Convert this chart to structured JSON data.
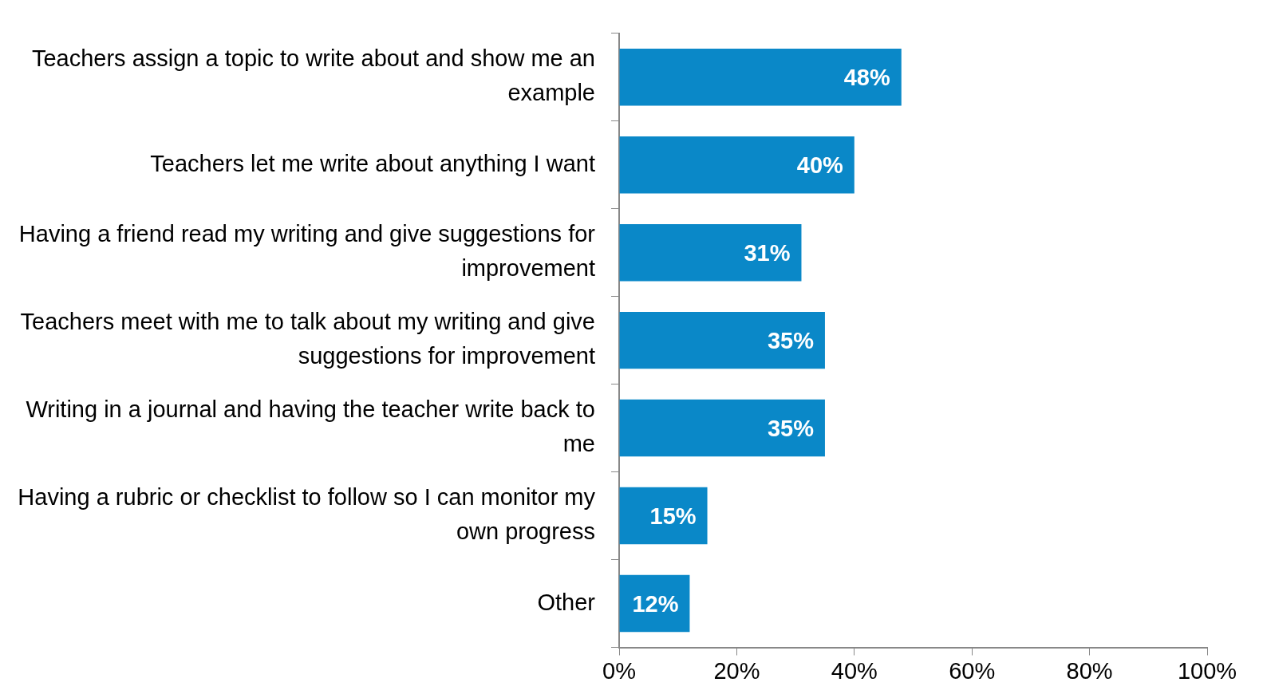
{
  "chart_data": {
    "type": "bar",
    "orientation": "horizontal",
    "categories": [
      "Teachers assign a topic to write about and show me an example",
      "Teachers let me write about anything I want",
      "Having a friend read my writing and give suggestions for improvement",
      "Teachers meet with me to talk about my writing and give suggestions for improvement",
      "Writing in a journal and having the teacher write back to me",
      "Having a rubric or checklist to follow so I can monitor my own progress",
      "Other"
    ],
    "values": [
      48,
      40,
      31,
      35,
      35,
      15,
      12
    ],
    "value_labels": [
      "48%",
      "40%",
      "31%",
      "35%",
      "35%",
      "15%",
      "12%"
    ],
    "color": "#0a88c8",
    "xlim": [
      0,
      100
    ],
    "xticks": [
      {
        "value": 0,
        "label": "0%"
      },
      {
        "value": 20,
        "label": "20%"
      },
      {
        "value": 40,
        "label": "40%"
      },
      {
        "value": 60,
        "label": "60%"
      },
      {
        "value": 80,
        "label": "80%"
      },
      {
        "value": 100,
        "label": "100%"
      }
    ],
    "grid": false,
    "legend": false
  }
}
